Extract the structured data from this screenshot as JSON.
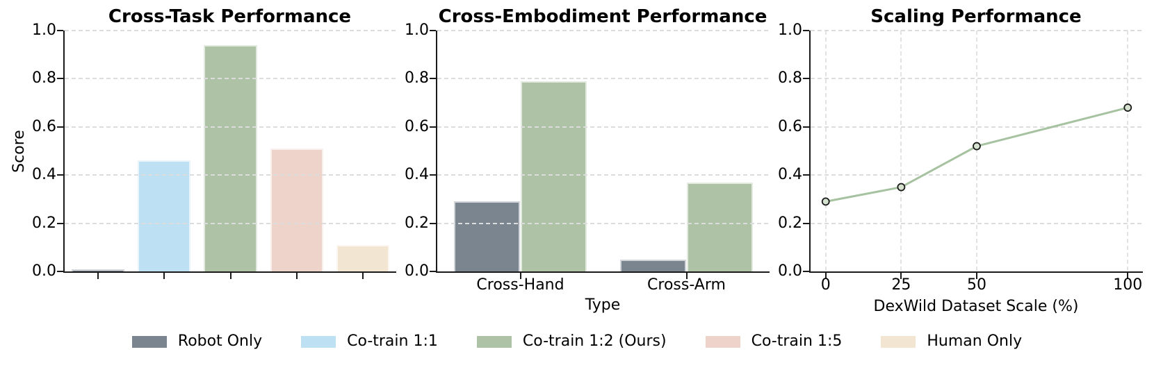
{
  "figure": {
    "background": "#ffffff"
  },
  "palette": {
    "robot_only": "#7a8590",
    "cotrain_1_1": "#bde0f2",
    "cotrain_1_2": "#aec2a6",
    "cotrain_1_5": "#eed3ca",
    "human_only": "#f2e5d2",
    "line": "#a6c2a0",
    "marker_fill": "#d4e2cf",
    "marker_edge": "#1a1a1a",
    "spine": "#1a1a1a",
    "grid": "#dcdcdc",
    "text": "#000000"
  },
  "legend": {
    "items": [
      {
        "label": "Robot Only",
        "color_key": "robot_only"
      },
      {
        "label": "Co-train 1:1",
        "color_key": "cotrain_1_1"
      },
      {
        "label": "Co-train 1:2 (Ours)",
        "color_key": "cotrain_1_2"
      },
      {
        "label": "Co-train 1:5",
        "color_key": "cotrain_1_5"
      },
      {
        "label": "Human Only",
        "color_key": "human_only"
      }
    ]
  },
  "chart_data": [
    {
      "type": "bar",
      "title": "Cross-Task Performance",
      "xlabel": "",
      "ylabel": "Score",
      "ylim": [
        0,
        1
      ],
      "yticks": [
        0,
        0.2,
        0.4,
        0.6,
        0.8,
        1.0
      ],
      "ytick_labels": [
        "0.0",
        "0.2",
        "0.4",
        "0.6",
        "0.8",
        "1.0"
      ],
      "grid": "horizontal",
      "categories": [
        "Robot Only",
        "Co-train 1:1",
        "Co-train 1:2 (Ours)",
        "Co-train 1:5",
        "Human Only"
      ],
      "xtick_labels": [
        "",
        "",
        "",
        "",
        ""
      ],
      "values": [
        0.01,
        0.46,
        0.94,
        0.51,
        0.11
      ],
      "colors": [
        "robot_only",
        "cotrain_1_1",
        "cotrain_1_2",
        "cotrain_1_5",
        "human_only"
      ],
      "bar_width": 0.8
    },
    {
      "type": "grouped_bar",
      "title": "Cross-Embodiment Performance",
      "xlabel": "Type",
      "ylabel": "",
      "ylim": [
        0,
        1
      ],
      "yticks": [
        0,
        0.2,
        0.4,
        0.6,
        0.8,
        1.0
      ],
      "ytick_labels": [
        "0.0",
        "0.2",
        "0.4",
        "0.6",
        "0.8",
        "1.0"
      ],
      "grid": "horizontal",
      "categories": [
        "Cross-Hand",
        "Cross-Arm"
      ],
      "xtick_labels": [
        "Cross-Hand",
        "Cross-Arm"
      ],
      "series": [
        {
          "name": "Robot Only",
          "color_key": "robot_only",
          "values": [
            0.29,
            0.05
          ]
        },
        {
          "name": "Co-train 1:2 (Ours)",
          "color_key": "cotrain_1_2",
          "values": [
            0.79,
            0.37
          ]
        }
      ],
      "bar_width": 0.4
    },
    {
      "type": "line",
      "title": "Scaling Performance",
      "xlabel": "DexWild Dataset Scale (%)",
      "ylabel": "",
      "ylim": [
        0,
        1
      ],
      "xlim": [
        -5,
        105
      ],
      "yticks": [
        0,
        0.2,
        0.4,
        0.6,
        0.8,
        1.0
      ],
      "ytick_labels": [
        "0.0",
        "0.2",
        "0.4",
        "0.6",
        "0.8",
        "1.0"
      ],
      "xticks": [
        0,
        25,
        50,
        100
      ],
      "xtick_labels": [
        "0",
        "25",
        "50",
        "100"
      ],
      "grid": "both",
      "x": [
        0,
        25,
        50,
        100
      ],
      "y": [
        0.29,
        0.35,
        0.52,
        0.68
      ],
      "series_name": "Co-train 1:2 (Ours)",
      "line_color_key": "line"
    }
  ]
}
